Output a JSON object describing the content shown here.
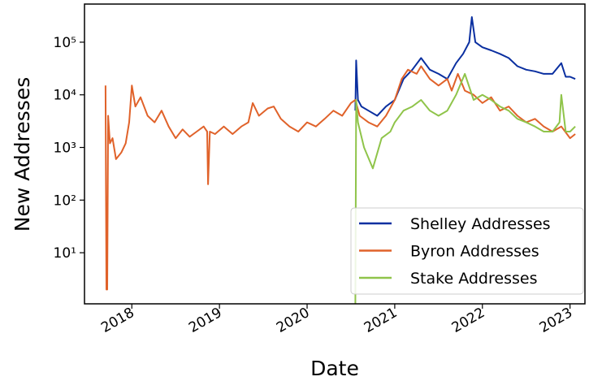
{
  "chart_data": {
    "type": "line",
    "xlabel": "Date",
    "ylabel": "New Addresses",
    "log_y": true,
    "legend": "lower right",
    "xlim": [
      2017.46,
      2023.17
    ],
    "xticks": [
      2018,
      2019,
      2020,
      2021,
      2022,
      2023
    ],
    "ylim": [
      1.07,
      530000
    ],
    "yticks": [
      {
        "value": 10,
        "label": "10¹"
      },
      {
        "value": 100,
        "label": "10²"
      },
      {
        "value": 1000,
        "label": "10³"
      },
      {
        "value": 10000,
        "label": "10⁴"
      },
      {
        "value": 100000,
        "label": "10⁵"
      }
    ],
    "series": [
      {
        "name": "Shelley Addresses",
        "color": "#0a2fa0",
        "x": [
          2020.55,
          2020.56,
          2020.58,
          2020.62,
          2020.7,
          2020.8,
          2020.9,
          2021.0,
          2021.1,
          2021.2,
          2021.3,
          2021.4,
          2021.5,
          2021.6,
          2021.7,
          2021.78,
          2021.85,
          2021.88,
          2021.92,
          2022.0,
          2022.1,
          2022.2,
          2022.3,
          2022.4,
          2022.5,
          2022.6,
          2022.7,
          2022.8,
          2022.9,
          2022.95,
          2023.0,
          2023.06
        ],
        "values": [
          5000,
          45000,
          8000,
          6000,
          5000,
          4000,
          6000,
          8000,
          20000,
          30000,
          50000,
          30000,
          25000,
          20000,
          40000,
          60000,
          100000,
          300000,
          100000,
          80000,
          70000,
          60000,
          50000,
          35000,
          30000,
          28000,
          25000,
          25000,
          40000,
          22000,
          22000,
          20000
        ]
      },
      {
        "name": "Byron Addresses",
        "color": "#e0622a",
        "x": [
          2017.7,
          2017.71,
          2017.72,
          2017.73,
          2017.75,
          2017.78,
          2017.82,
          2017.88,
          2017.93,
          2017.97,
          2018.0,
          2018.04,
          2018.1,
          2018.18,
          2018.26,
          2018.34,
          2018.42,
          2018.5,
          2018.58,
          2018.66,
          2018.74,
          2018.82,
          2018.86,
          2018.87,
          2018.89,
          2018.95,
          2019.05,
          2019.15,
          2019.25,
          2019.33,
          2019.38,
          2019.45,
          2019.55,
          2019.62,
          2019.7,
          2019.8,
          2019.9,
          2020.0,
          2020.1,
          2020.2,
          2020.3,
          2020.4,
          2020.5,
          2020.55,
          2020.6,
          2020.7,
          2020.8,
          2020.9,
          2021.0,
          2021.08,
          2021.15,
          2021.25,
          2021.3,
          2021.4,
          2021.5,
          2021.6,
          2021.65,
          2021.72,
          2021.8,
          2021.9,
          2022.0,
          2022.1,
          2022.2,
          2022.3,
          2022.4,
          2022.5,
          2022.6,
          2022.7,
          2022.8,
          2022.9,
          2023.0,
          2023.06
        ],
        "values": [
          15000,
          2,
          2,
          4000,
          1200,
          1500,
          600,
          800,
          1200,
          3000,
          15000,
          6000,
          9000,
          4000,
          3000,
          5000,
          2500,
          1500,
          2200,
          1600,
          2000,
          2500,
          2000,
          200,
          2000,
          1800,
          2500,
          1800,
          2500,
          3000,
          7000,
          4000,
          5500,
          6000,
          3500,
          2500,
          2000,
          3000,
          2500,
          3500,
          5000,
          4000,
          7000,
          8000,
          4000,
          3000,
          2500,
          4000,
          8000,
          20000,
          30000,
          25000,
          35000,
          20000,
          15000,
          20000,
          12000,
          25000,
          12000,
          10000,
          7000,
          9000,
          5000,
          6000,
          4000,
          3000,
          3500,
          2500,
          2000,
          2500,
          1500,
          1800
        ]
      },
      {
        "name": "Stake Addresses",
        "color": "#8fc44a",
        "x": [
          2020.55,
          2020.56,
          2020.58,
          2020.65,
          2020.75,
          2020.85,
          2020.95,
          2021.0,
          2021.1,
          2021.2,
          2021.3,
          2021.4,
          2021.5,
          2021.6,
          2021.7,
          2021.8,
          2021.9,
          2022.0,
          2022.1,
          2022.2,
          2022.3,
          2022.4,
          2022.5,
          2022.6,
          2022.7,
          2022.8,
          2022.88,
          2022.9,
          2022.95,
          2023.0,
          2023.06
        ],
        "values": [
          1,
          8000,
          3000,
          1000,
          400,
          1500,
          2000,
          3000,
          5000,
          6000,
          8000,
          5000,
          4000,
          5000,
          10000,
          25000,
          8000,
          10000,
          8000,
          6000,
          5000,
          3500,
          3000,
          2500,
          2000,
          2000,
          3000,
          10000,
          2000,
          2000,
          2500
        ]
      }
    ]
  }
}
